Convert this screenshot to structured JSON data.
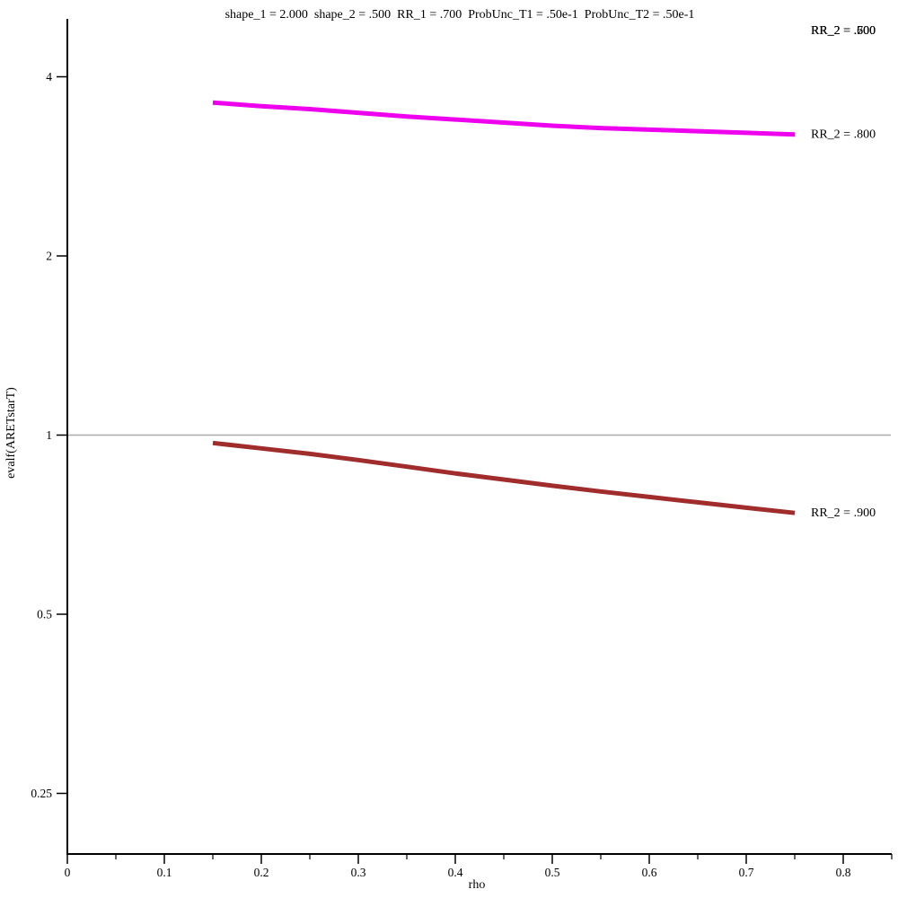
{
  "title": "shape_1 = 2.000  shape_2 = .500  RR_1 = .700  ProbUnc_T1 = .50e-1  ProbUnc_T2 = .50e-1",
  "chart_data": {
    "type": "line",
    "title": "shape_1 = 2.000  shape_2 = .500  RR_1 = .700  ProbUnc_T1 = .50e-1  ProbUnc_T2 = .50e-1",
    "xlabel": "rho",
    "ylabel": "evalf(ARETstarT)",
    "grid": "off",
    "legend_position": "end-of-line-labels",
    "x_axis": {
      "min": 0,
      "max": 0.85,
      "major_ticks": [
        0,
        0.1,
        0.2,
        0.3,
        0.4,
        0.5,
        0.6,
        0.7,
        0.8
      ],
      "major_labels": [
        "0",
        "0.1",
        "0.2",
        "0.3",
        "0.4",
        "0.5",
        "0.6",
        "0.7",
        "0.8"
      ],
      "minor_ticks": [
        0.05,
        0.15,
        0.25,
        0.35,
        0.45,
        0.55,
        0.65,
        0.75,
        0.85
      ]
    },
    "y_axis": {
      "scale": "log2",
      "min": 0.2,
      "max": 5.0,
      "major_ticks": [
        4,
        2,
        1,
        0.5,
        0.25
      ],
      "major_labels": [
        "4",
        "2",
        "1",
        "0.5",
        "0.25"
      ]
    },
    "reference_line": {
      "y": 1,
      "color": "#AAAAAA"
    },
    "x": [
      0.15,
      0.2,
      0.25,
      0.3,
      0.35,
      0.4,
      0.45,
      0.5,
      0.55,
      0.6,
      0.65,
      0.7,
      0.75
    ],
    "series": [
      {
        "name": "RR_2 = .800",
        "color": "#EE00EE",
        "values": [
          3.62,
          3.57,
          3.53,
          3.48,
          3.43,
          3.39,
          3.35,
          3.31,
          3.28,
          3.26,
          3.24,
          3.22,
          3.2
        ]
      },
      {
        "name": "RR_2 = .900",
        "color": "#A02C2C",
        "values": [
          0.97,
          0.95,
          0.93,
          0.908,
          0.885,
          0.862,
          0.842,
          0.822,
          0.804,
          0.787,
          0.771,
          0.755,
          0.74
        ]
      }
    ],
    "overlapping_labels_top_right": [
      {
        "name": "RR_2 = .500",
        "color": "#D40000"
      },
      {
        "name": "RR_2 = .600",
        "color": "#00A000"
      },
      {
        "name": "RR_2 = .700",
        "color": "#1414EE"
      }
    ],
    "colors": {
      "axis": "#000000",
      "text": "#000000",
      "background": "#FFFFFF"
    }
  }
}
